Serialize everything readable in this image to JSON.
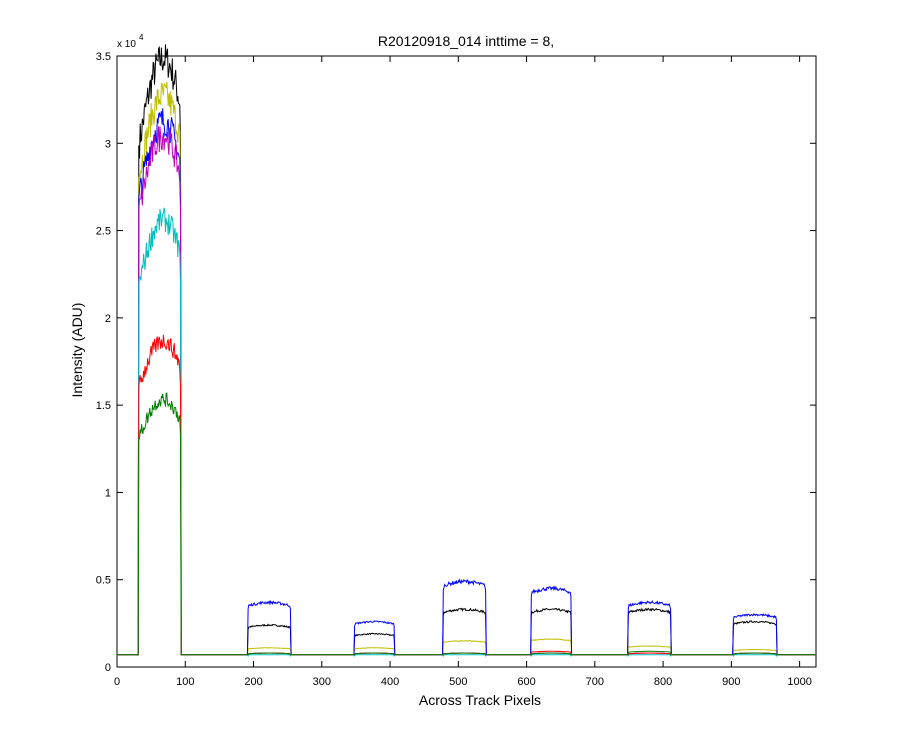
{
  "chart_data": {
    "type": "line",
    "title": "R20120918_014 inttime = 8,",
    "xlabel": "Across Track Pixels",
    "ylabel": "Intensity (ADU)",
    "y_exponent_label": {
      "base": "x 10",
      "exp": "4"
    },
    "xlim": [
      0,
      1024
    ],
    "ylim": [
      0,
      35000
    ],
    "x_ticks": [
      0,
      100,
      200,
      300,
      400,
      500,
      600,
      700,
      800,
      900,
      1000
    ],
    "y_ticks": [
      0,
      5000,
      10000,
      15000,
      20000,
      25000,
      30000,
      35000
    ],
    "y_tick_labels": [
      "0",
      "0.5",
      "1",
      "1.5",
      "2",
      "2.5",
      "3",
      "3.5"
    ],
    "baseline": 700,
    "grid": false,
    "legend": "none",
    "segments": [
      {
        "x_start": 32,
        "x_end": 93
      },
      {
        "x_start": 192,
        "x_end": 254
      },
      {
        "x_start": 348,
        "x_end": 406
      },
      {
        "x_start": 478,
        "x_end": 540
      },
      {
        "x_start": 607,
        "x_end": 665
      },
      {
        "x_start": 749,
        "x_end": 811
      },
      {
        "x_start": 903,
        "x_end": 966
      }
    ],
    "series": [
      {
        "color": "#000000",
        "values": [
          33200,
          2400,
          1900,
          3300,
          3300,
          3300,
          2600
        ]
      },
      {
        "color": "#bfbf00",
        "values": [
          31200,
          1100,
          1100,
          1500,
          1600,
          1200,
          1000
        ]
      },
      {
        "color": "#0000ff",
        "values": [
          29800,
          3700,
          2600,
          4900,
          4500,
          3700,
          3000
        ]
      },
      {
        "color": "#bf00bf",
        "values": [
          29000,
          800,
          800,
          800,
          800,
          800,
          800
        ]
      },
      {
        "color": "#00bfbf",
        "values": [
          24400,
          700,
          700,
          700,
          700,
          700,
          700
        ]
      },
      {
        "color": "#ff0000",
        "values": [
          17800,
          800,
          800,
          800,
          900,
          800,
          800
        ]
      },
      {
        "color": "#008000",
        "values": [
          14600,
          800,
          800,
          800,
          800,
          900,
          800
        ]
      }
    ]
  }
}
